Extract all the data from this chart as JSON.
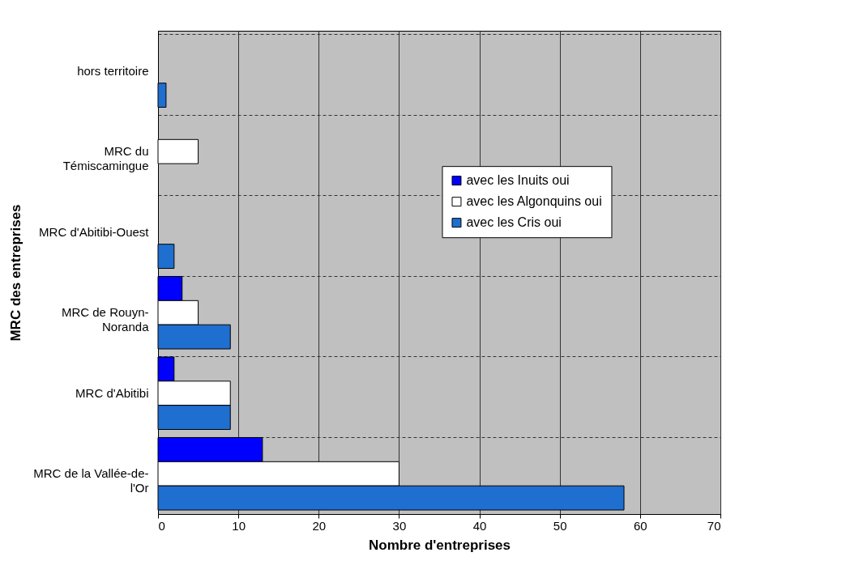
{
  "chart_data": {
    "type": "bar",
    "orientation": "horizontal",
    "xlabel": "Nombre d'entreprises",
    "ylabel": "MRC des entreprises",
    "categories": [
      "hors territoire",
      "MRC du Témiscamingue",
      "MRC d'Abitibi-Ouest",
      "MRC de Rouyn-Noranda",
      "MRC d'Abitibi",
      "MRC de la Vallée-de-l'Or"
    ],
    "series": [
      {
        "name": "avec les Inuits oui",
        "color": "#0000ff",
        "values": [
          null,
          null,
          null,
          3,
          2,
          13
        ]
      },
      {
        "name": "avec les Algonquins oui",
        "color": "#ffffff",
        "values": [
          null,
          5,
          null,
          5,
          9,
          30
        ]
      },
      {
        "name": "avec les Cris oui",
        "color": "#1f6fd0",
        "values": [
          1,
          null,
          2,
          9,
          9,
          58
        ]
      }
    ],
    "xlim": [
      0,
      70
    ],
    "xticks": [
      0,
      10,
      20,
      30,
      40,
      50,
      60,
      70
    ],
    "grid": true,
    "legend": "right"
  }
}
